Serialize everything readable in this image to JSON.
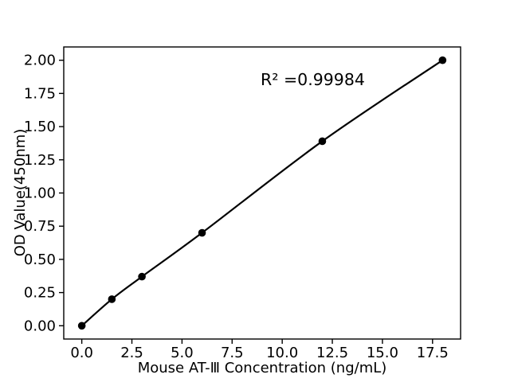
{
  "figure": {
    "background": "#ffffff"
  },
  "chart_data": {
    "type": "line",
    "title": "",
    "xlabel": "Mouse AT-Ⅲ Concentration (ng/mL)",
    "ylabel": "OD Value(450nm)",
    "annotation": "R² =0.99984",
    "x": [
      0,
      1.5,
      3,
      6,
      12,
      18
    ],
    "y": [
      0.0,
      0.2,
      0.37,
      0.7,
      1.39,
      2.0
    ],
    "xlim": [
      -0.9,
      18.9
    ],
    "ylim": [
      -0.1,
      2.1
    ],
    "x_ticks": [
      0.0,
      2.5,
      5.0,
      7.5,
      10.0,
      12.5,
      15.0,
      17.5
    ],
    "x_tick_labels": [
      "0.0",
      "2.5",
      "5.0",
      "7.5",
      "10.0",
      "12.5",
      "15.0",
      "17.5"
    ],
    "y_ticks": [
      0.0,
      0.25,
      0.5,
      0.75,
      1.0,
      1.25,
      1.5,
      1.75,
      2.0
    ],
    "y_tick_labels": [
      "0.00",
      "0.25",
      "0.50",
      "0.75",
      "1.00",
      "1.25",
      "1.50",
      "1.75",
      "2.00"
    ],
    "grid": false,
    "marker": "circle",
    "line_color": "#000000",
    "marker_color": "#000000",
    "axis_color": "#000000",
    "background": "#ffffff"
  }
}
